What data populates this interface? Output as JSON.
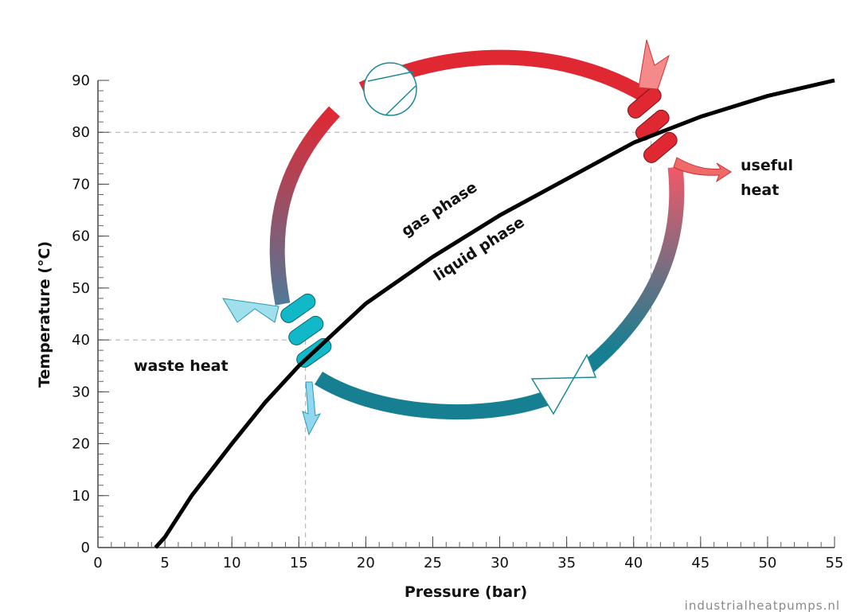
{
  "chart_data": {
    "type": "line",
    "xlabel": "Pressure (bar)",
    "ylabel": "Temperature (°C)",
    "x": [
      4.3,
      5,
      7,
      10,
      12.5,
      15,
      17.5,
      20,
      25,
      30,
      35,
      40,
      42,
      45,
      50,
      55
    ],
    "series": [
      {
        "color": "#000000",
        "values": [
          0,
          2,
          10,
          20,
          28,
          35,
          41,
          47,
          56,
          64,
          71,
          78,
          80,
          83,
          87,
          90
        ]
      }
    ],
    "xlim": [
      0,
      55
    ],
    "xticks": [
      0,
      5,
      10,
      15,
      20,
      25,
      30,
      35,
      40,
      45,
      50,
      55
    ],
    "ylim": [
      0,
      90
    ],
    "yticks": [
      0,
      10,
      20,
      30,
      40,
      50,
      60,
      70,
      80,
      90
    ],
    "x_minor_step": 1,
    "y_minor_step": 2,
    "reference_points": [
      {
        "x": 15.5,
        "y": 40
      },
      {
        "x": 41.3,
        "y": 80
      }
    ],
    "annotations": [
      "gas phase",
      "liquid phase",
      "waste heat",
      "useful",
      "heat"
    ],
    "source": "industrialheatpumps.nl"
  }
}
